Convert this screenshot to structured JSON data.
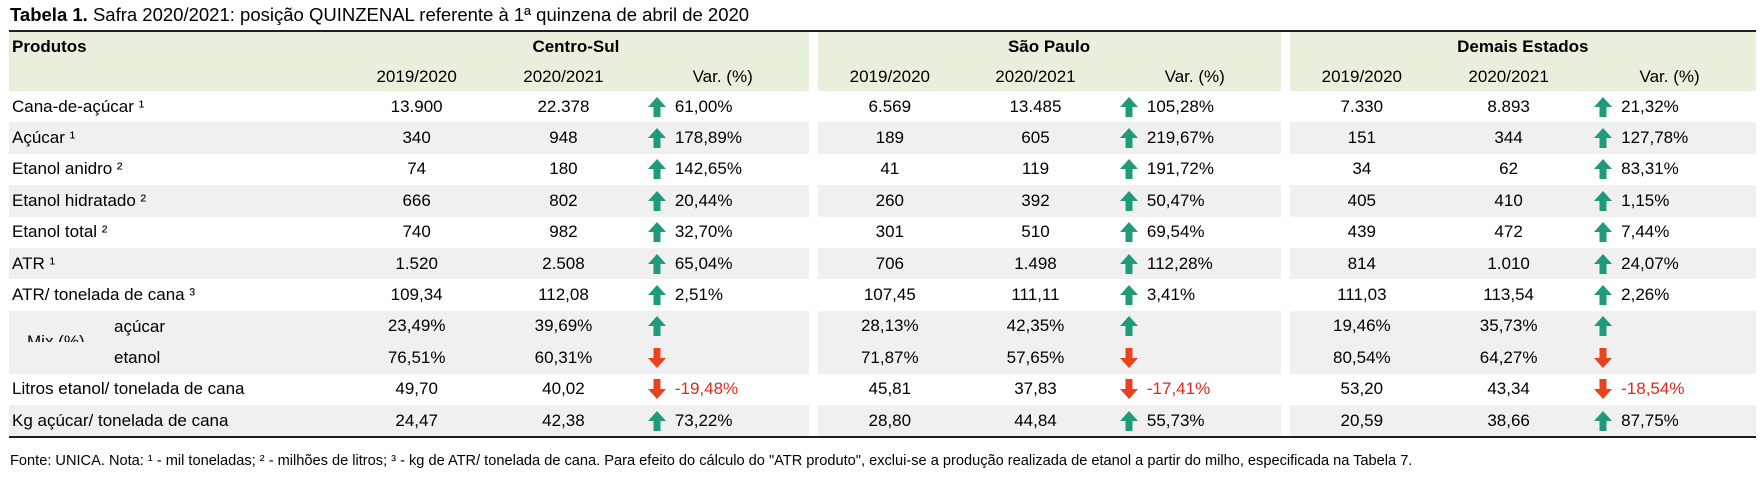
{
  "title_bold": "Tabela 1.",
  "title_rest": " Safra 2020/2021: posição QUINZENAL referente à 1ª quinzena de abril de 2020",
  "header": {
    "products": "Produtos",
    "regions": [
      "Centro-Sul",
      "São Paulo",
      "Demais Estados"
    ],
    "cols": [
      "2019/2020",
      "2020/2021",
      "Var. (%)"
    ]
  },
  "colors": {
    "up": "#1f9b79",
    "down": "#e8421f",
    "header_bg": "#e8f0dd",
    "zebra": "#f0f0f0",
    "negative_text": "#e0281e"
  },
  "rows": [
    {
      "label": "Cana-de-açúcar ¹",
      "cs": [
        "13.900",
        "22.378",
        "61,00%"
      ],
      "sp": [
        "6.569",
        "13.485",
        "105,28%"
      ],
      "de": [
        "7.330",
        "8.893",
        "21,32%"
      ],
      "dir": [
        "up",
        "up",
        "up"
      ]
    },
    {
      "label": "Açúcar ¹",
      "cs": [
        "340",
        "948",
        "178,89%"
      ],
      "sp": [
        "189",
        "605",
        "219,67%"
      ],
      "de": [
        "151",
        "344",
        "127,78%"
      ],
      "dir": [
        "up",
        "up",
        "up"
      ]
    },
    {
      "label": "Etanol anidro ²",
      "cs": [
        "74",
        "180",
        "142,65%"
      ],
      "sp": [
        "41",
        "119",
        "191,72%"
      ],
      "de": [
        "34",
        "62",
        "83,31%"
      ],
      "dir": [
        "up",
        "up",
        "up"
      ]
    },
    {
      "label": "Etanol hidratado ²",
      "cs": [
        "666",
        "802",
        "20,44%"
      ],
      "sp": [
        "260",
        "392",
        "50,47%"
      ],
      "de": [
        "405",
        "410",
        "1,15%"
      ],
      "dir": [
        "up",
        "up",
        "up"
      ]
    },
    {
      "label": "Etanol total ²",
      "cs": [
        "740",
        "982",
        "32,70%"
      ],
      "sp": [
        "301",
        "510",
        "69,54%"
      ],
      "de": [
        "439",
        "472",
        "7,44%"
      ],
      "dir": [
        "up",
        "up",
        "up"
      ]
    },
    {
      "label": "ATR ¹",
      "cs": [
        "1.520",
        "2.508",
        "65,04%"
      ],
      "sp": [
        "706",
        "1.498",
        "112,28%"
      ],
      "de": [
        "814",
        "1.010",
        "24,07%"
      ],
      "dir": [
        "up",
        "up",
        "up"
      ]
    },
    {
      "label": "ATR/ tonelada de cana ³",
      "cs": [
        "109,34",
        "112,08",
        "2,51%"
      ],
      "sp": [
        "107,45",
        "111,11",
        "3,41%"
      ],
      "de": [
        "111,03",
        "113,54",
        "2,26%"
      ],
      "dir": [
        "up",
        "up",
        "up"
      ]
    }
  ],
  "mix": {
    "label": "Mix (%)",
    "rows": [
      {
        "label": "açúcar",
        "cs": [
          "23,49%",
          "39,69%",
          ""
        ],
        "sp": [
          "28,13%",
          "42,35%",
          ""
        ],
        "de": [
          "19,46%",
          "35,73%",
          ""
        ],
        "dir": [
          "up",
          "up",
          "up"
        ]
      },
      {
        "label": "etanol",
        "cs": [
          "76,51%",
          "60,31%",
          ""
        ],
        "sp": [
          "71,87%",
          "57,65%",
          ""
        ],
        "de": [
          "80,54%",
          "64,27%",
          ""
        ],
        "dir": [
          "down",
          "down",
          "down"
        ]
      }
    ]
  },
  "rows_bottom": [
    {
      "label": "Litros etanol/ tonelada de cana",
      "cs": [
        "49,70",
        "40,02",
        "-19,48%"
      ],
      "sp": [
        "45,81",
        "37,83",
        "-17,41%"
      ],
      "de": [
        "53,20",
        "43,34",
        "-18,54%"
      ],
      "dir": [
        "down",
        "down",
        "down"
      ]
    },
    {
      "label": "Kg açúcar/ tonelada de cana",
      "cs": [
        "24,47",
        "42,38",
        "73,22%"
      ],
      "sp": [
        "28,80",
        "44,84",
        "55,73%"
      ],
      "de": [
        "20,59",
        "38,66",
        "87,75%"
      ],
      "dir": [
        "up",
        "up",
        "up"
      ]
    }
  ],
  "footnote": "Fonte: UNICA. Nota: ¹ - mil toneladas; ² - milhões de litros; ³ - kg de ATR/ tonelada de cana. Para efeito do cálculo do \"ATR produto\", exclui-se a produção realizada de etanol a partir do milho, especificada na Tabela 7."
}
